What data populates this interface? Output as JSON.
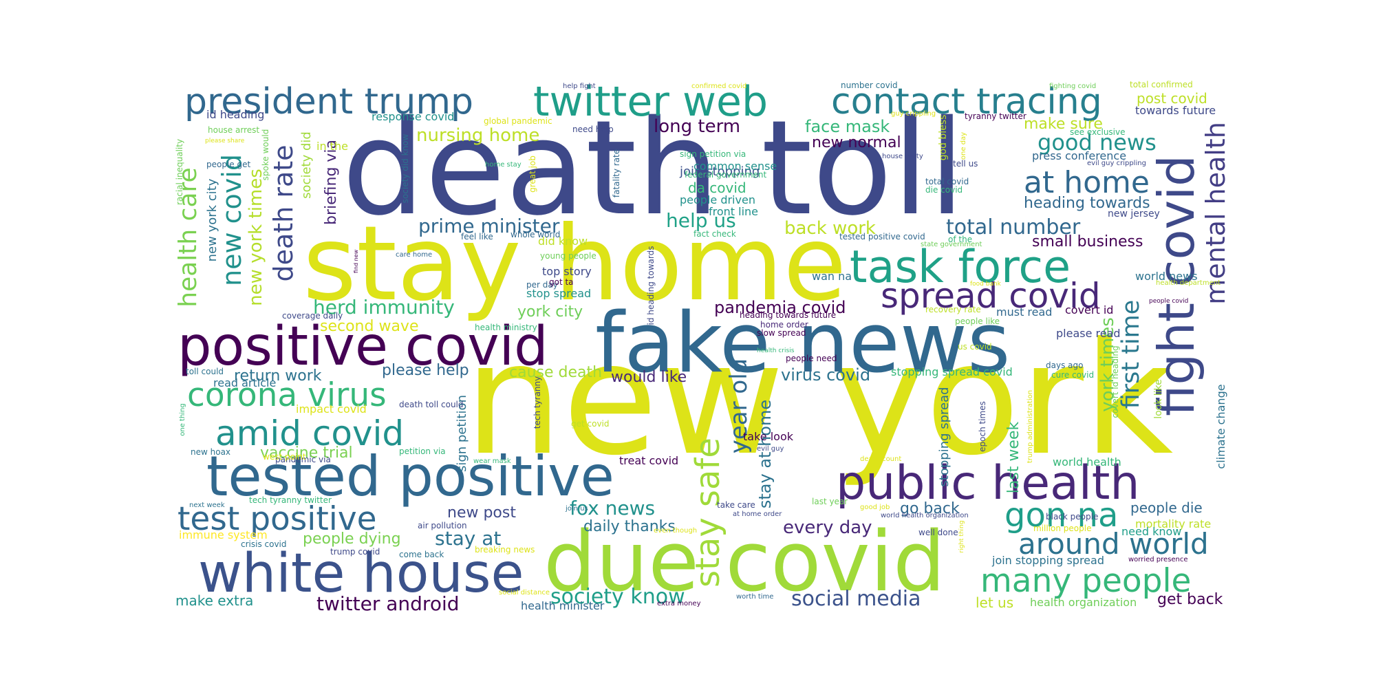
{
  "words": [
    {
      "text": "new york",
      "color": "#dde318"
    },
    {
      "text": "death toll",
      "color": "#3e4989"
    },
    {
      "text": "stay home",
      "color": "#dde318"
    },
    {
      "text": "fake news",
      "color": "#31688e"
    },
    {
      "text": "due covid",
      "color": "#a0da39"
    },
    {
      "text": "tested positive",
      "color": "#31688e"
    },
    {
      "text": "positive covid",
      "color": "#440154"
    },
    {
      "text": "white house",
      "color": "#3b528b"
    },
    {
      "text": "public health",
      "color": "#482878"
    },
    {
      "text": "task force",
      "color": "#1fa187"
    },
    {
      "text": "twitter web",
      "color": "#1f9e89"
    },
    {
      "text": "fight covid",
      "color": "#3e4989"
    },
    {
      "text": "president trump",
      "color": "#31688e"
    },
    {
      "text": "contact tracing",
      "color": "#277f8e"
    },
    {
      "text": "spread covid",
      "color": "#482878"
    },
    {
      "text": "corona virus",
      "color": "#35b779"
    },
    {
      "text": "amid covid",
      "color": "#21918c"
    },
    {
      "text": "test positive",
      "color": "#31688e"
    },
    {
      "text": "many people",
      "color": "#35b779"
    },
    {
      "text": "around world",
      "color": "#2c728e"
    },
    {
      "text": "gon na",
      "color": "#1f9e89"
    },
    {
      "text": "stay safe",
      "color": "#a0da39"
    },
    {
      "text": "mental health",
      "color": "#433e85"
    },
    {
      "text": "death rate",
      "color": "#3e4989"
    },
    {
      "text": "new covid",
      "color": "#21918c"
    },
    {
      "text": "health care",
      "color": "#7ad151"
    },
    {
      "text": "first time",
      "color": "#2a788e"
    },
    {
      "text": "at home",
      "color": "#31688e"
    },
    {
      "text": "year old",
      "color": "#31688e"
    },
    {
      "text": "total number",
      "color": "#31688e"
    },
    {
      "text": "good news",
      "color": "#21918c"
    },
    {
      "text": "new york times",
      "color": "#b5de2b"
    },
    {
      "text": "social media",
      "color": "#3b528b"
    },
    {
      "text": "twitter android",
      "color": "#440154"
    },
    {
      "text": "society know",
      "color": "#1f9e89"
    },
    {
      "text": "herd immunity",
      "color": "#35b779"
    },
    {
      "text": "prime minister",
      "color": "#31688e"
    },
    {
      "text": "york times",
      "color": "#6ece58"
    },
    {
      "text": "fox news",
      "color": "#21918c"
    },
    {
      "text": "help us",
      "color": "#1fa187"
    },
    {
      "text": "back work",
      "color": "#bddf26"
    },
    {
      "text": "long term",
      "color": "#440154"
    },
    {
      "text": "every day",
      "color": "#482878"
    },
    {
      "text": "stay at home",
      "color": "#2c728e"
    },
    {
      "text": "nursing home",
      "color": "#bddf26"
    },
    {
      "text": "pandemia covid",
      "color": "#440154"
    },
    {
      "text": "heading towards",
      "color": "#31688e"
    },
    {
      "text": "stay at",
      "color": "#2c728e"
    },
    {
      "text": "daily thanks",
      "color": "#2c728e"
    },
    {
      "text": "face mask",
      "color": "#35b779"
    },
    {
      "text": "vaccine trial",
      "color": "#7ad151"
    },
    {
      "text": "return work",
      "color": "#2c728e"
    },
    {
      "text": "would like",
      "color": "#482878"
    },
    {
      "text": "virus covid",
      "color": "#2c728e"
    },
    {
      "text": "second wave",
      "color": "#dde318"
    },
    {
      "text": "york city",
      "color": "#6ece58"
    },
    {
      "text": "cause death",
      "color": "#a0da39"
    },
    {
      "text": "people dying",
      "color": "#7ad151"
    },
    {
      "text": "go back",
      "color": "#31688e"
    },
    {
      "text": "new post",
      "color": "#3e4989"
    },
    {
      "text": "make sure",
      "color": "#bddf26"
    },
    {
      "text": "please help",
      "color": "#31688e"
    },
    {
      "text": "new normal",
      "color": "#440154"
    },
    {
      "text": "small business",
      "color": "#440154"
    },
    {
      "text": "people die",
      "color": "#31688e"
    },
    {
      "text": "post covid",
      "color": "#bddf26"
    },
    {
      "text": "get back",
      "color": "#440154"
    },
    {
      "text": "make extra",
      "color": "#21918c"
    },
    {
      "text": "last week",
      "color": "#35b779"
    },
    {
      "text": "briefing via",
      "color": "#482878"
    },
    {
      "text": "society did",
      "color": "#a0da39"
    },
    {
      "text": "sign petition",
      "color": "#2c728e"
    },
    {
      "text": "stopping spread",
      "color": "#2c728e"
    },
    {
      "text": "new york city",
      "color": "#2c728e"
    },
    {
      "text": "da covid",
      "color": "#35b779"
    },
    {
      "text": "join stopping",
      "color": "#3b528b"
    },
    {
      "text": "id heading",
      "color": "#3e4989"
    },
    {
      "text": "response covid",
      "color": "#21918c"
    },
    {
      "text": "common sense",
      "color": "#21918c"
    },
    {
      "text": "front line",
      "color": "#21918c"
    },
    {
      "text": "people driven",
      "color": "#21918c"
    },
    {
      "text": "stopping spread covid",
      "color": "#35b779"
    },
    {
      "text": "climate change",
      "color": "#2c728e"
    },
    {
      "text": "world news",
      "color": "#2c728e"
    },
    {
      "text": "world health",
      "color": "#35b779"
    },
    {
      "text": "mortality rate",
      "color": "#bddf26"
    },
    {
      "text": "need know",
      "color": "#1f9e89"
    },
    {
      "text": "health organization",
      "color": "#6ece58"
    },
    {
      "text": "join stopping spread",
      "color": "#2c728e"
    },
    {
      "text": "let us",
      "color": "#bddf26"
    },
    {
      "text": "immune system",
      "color": "#fde725"
    },
    {
      "text": "health minister",
      "color": "#31688e"
    },
    {
      "text": "take look",
      "color": "#440154"
    },
    {
      "text": "treat covid",
      "color": "#440154"
    },
    {
      "text": "wan na",
      "color": "#2c728e"
    },
    {
      "text": "top story",
      "color": "#3e4989"
    },
    {
      "text": "stop spread",
      "color": "#21918c"
    },
    {
      "text": "did know",
      "color": "#bddf26"
    },
    {
      "text": "read article",
      "color": "#2c728e"
    },
    {
      "text": "impact covid",
      "color": "#dde318"
    },
    {
      "text": "must read",
      "color": "#31688e"
    },
    {
      "text": "covert id",
      "color": "#440154"
    },
    {
      "text": "please read",
      "color": "#3e4989"
    },
    {
      "text": "press conference",
      "color": "#31688e"
    },
    {
      "text": "towards future",
      "color": "#3e4989"
    },
    {
      "text": "new jersey",
      "color": "#3e4989"
    },
    {
      "text": "in the",
      "color": "#bddf26"
    },
    {
      "text": "total confirmed",
      "color": "#bddf26"
    },
    {
      "text": "house arrest",
      "color": "#6ece58"
    },
    {
      "text": "need help",
      "color": "#3e4989"
    },
    {
      "text": "number covid",
      "color": "#2c728e"
    },
    {
      "text": "tyranny twitter",
      "color": "#440154"
    },
    {
      "text": "god bless",
      "color": "#bddf26"
    },
    {
      "text": "tell us",
      "color": "#3e4989"
    },
    {
      "text": "total covid",
      "color": "#31688e"
    },
    {
      "text": "die covid",
      "color": "#35b779"
    },
    {
      "text": "tested positive covid",
      "color": "#31688e"
    },
    {
      "text": "of the",
      "color": "#35b779"
    },
    {
      "text": "sign petition via",
      "color": "#35b779"
    },
    {
      "text": "federal government",
      "color": "#35b779"
    },
    {
      "text": "fact check",
      "color": "#35b779"
    },
    {
      "text": "feel like",
      "color": "#31688e"
    },
    {
      "text": "whole world",
      "color": "#31688e"
    },
    {
      "text": "global pandemic",
      "color": "#dde318"
    },
    {
      "text": "crisis covid",
      "color": "#2c728e"
    },
    {
      "text": "trump covid",
      "color": "#3e4989"
    },
    {
      "text": "come back",
      "color": "#2c728e"
    },
    {
      "text": "breaking news",
      "color": "#dde318"
    },
    {
      "text": "air pollution",
      "color": "#3e4989"
    },
    {
      "text": "pandemic via",
      "color": "#3e4989"
    },
    {
      "text": "west point",
      "color": "#dde318"
    },
    {
      "text": "new hoax",
      "color": "#2c728e"
    },
    {
      "text": "tech tyranny twitter",
      "color": "#35b779"
    },
    {
      "text": "next week",
      "color": "#2c728e"
    },
    {
      "text": "well done",
      "color": "#3e4989"
    },
    {
      "text": "million people",
      "color": "#dde318"
    },
    {
      "text": "black people",
      "color": "#3e4989"
    },
    {
      "text": "people need",
      "color": "#440154"
    },
    {
      "text": "slow spread",
      "color": "#440154"
    },
    {
      "text": "home order",
      "color": "#482878"
    },
    {
      "text": "heading towards future",
      "color": "#440154"
    },
    {
      "text": "days ago",
      "color": "#31688e"
    },
    {
      "text": "cure covid",
      "color": "#35b779"
    },
    {
      "text": "us covid",
      "color": "#bddf26"
    },
    {
      "text": "recovery rate",
      "color": "#bddf26"
    },
    {
      "text": "people like",
      "color": "#6ece58"
    },
    {
      "text": "health department",
      "color": "#bddf26"
    },
    {
      "text": "people covid",
      "color": "#440154"
    },
    {
      "text": "food bank",
      "color": "#dde318"
    },
    {
      "text": "health crisis",
      "color": "#35b779"
    },
    {
      "text": "look like",
      "color": "#a0da39"
    },
    {
      "text": "epoch times",
      "color": "#3e4989"
    },
    {
      "text": "covert id heading",
      "color": "#6ece58"
    },
    {
      "text": "trump administration",
      "color": "#dde318"
    },
    {
      "text": "death count",
      "color": "#dde318"
    },
    {
      "text": "evil guy",
      "color": "#3e4989"
    },
    {
      "text": "wear mask",
      "color": "#35b779"
    },
    {
      "text": "get covid",
      "color": "#bddf26"
    },
    {
      "text": "petition via",
      "color": "#35b779"
    },
    {
      "text": "death toll could",
      "color": "#3e4989"
    },
    {
      "text": "toll could",
      "color": "#2c728e"
    },
    {
      "text": "one thing",
      "color": "#35b779"
    },
    {
      "text": "tech tyranny",
      "color": "#3e4989"
    },
    {
      "text": "health ministry",
      "color": "#35b779"
    },
    {
      "text": "coverage daily",
      "color": "#3e4989"
    },
    {
      "text": "care home",
      "color": "#31688e"
    },
    {
      "text": "young people",
      "color": "#6ece58"
    },
    {
      "text": "per day",
      "color": "#31688e"
    },
    {
      "text": "got ta",
      "color": "#440154"
    },
    {
      "text": "id heading towards",
      "color": "#3e4989"
    },
    {
      "text": "society did know",
      "color": "#2c728e"
    },
    {
      "text": "fatality rate",
      "color": "#31688e"
    },
    {
      "text": "great job",
      "color": "#dde318"
    },
    {
      "text": "home stay",
      "color": "#35b779"
    },
    {
      "text": "find new",
      "color": "#440154"
    },
    {
      "text": "racial inequality",
      "color": "#6ece58"
    },
    {
      "text": "people get",
      "color": "#31688e"
    },
    {
      "text": "please share",
      "color": "#dde318"
    },
    {
      "text": "spoke would",
      "color": "#6ece58"
    },
    {
      "text": "help fight",
      "color": "#3e4989"
    },
    {
      "text": "confirmed covid",
      "color": "#dde318"
    },
    {
      "text": "fighting covid",
      "color": "#6ece58"
    },
    {
      "text": "guy crippling",
      "color": "#dde318"
    },
    {
      "text": "see exclusive",
      "color": "#35b779"
    },
    {
      "text": "evil guy crippling",
      "color": "#3e4989"
    },
    {
      "text": "one day",
      "color": "#dde318"
    },
    {
      "text": "house party",
      "color": "#3e4989"
    },
    {
      "text": "state government",
      "color": "#6ece58"
    },
    {
      "text": "join us",
      "color": "#2c728e"
    },
    {
      "text": "take care",
      "color": "#3e4989"
    },
    {
      "text": "at home order",
      "color": "#3e4989"
    },
    {
      "text": "world health organization",
      "color": "#3e4989"
    },
    {
      "text": "good job",
      "color": "#dde318"
    },
    {
      "text": "last year",
      "color": "#6ece58"
    },
    {
      "text": "even though",
      "color": "#dde318"
    },
    {
      "text": "social distance",
      "color": "#dde318"
    },
    {
      "text": "extra money",
      "color": "#440154"
    },
    {
      "text": "worth time",
      "color": "#31688e"
    },
    {
      "text": "right thing",
      "color": "#dde318"
    },
    {
      "text": "worried presence",
      "color": "#440154"
    }
  ]
}
